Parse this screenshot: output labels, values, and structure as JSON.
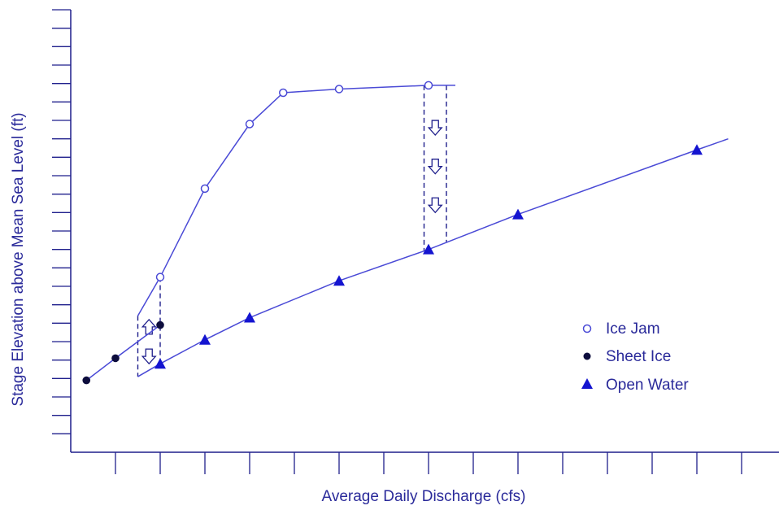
{
  "chart_data": {
    "type": "scatter",
    "title": "",
    "xlabel": "Average Daily Discharge (cfs)",
    "ylabel": "Stage Elevation above Mean Sea Level (ft)",
    "xlim": [
      0,
      16
    ],
    "ylim": [
      0,
      24
    ],
    "x_major_ticks": 16,
    "y_major_ticks": 24,
    "tick_labels": "none",
    "grid": false,
    "legend_position": "bottom-right",
    "colors": {
      "axis": "#1f1f8c",
      "line": "#4a4ad6",
      "ice_jam_fill": "#ffffff",
      "sheet_ice_fill": "#0d0d3d",
      "open_water_fill": "#1414d0",
      "label": "#2a2a9a"
    },
    "series": [
      {
        "name": "Ice Jam",
        "marker": "open-circle",
        "connected": true,
        "x": [
          2.0,
          3.0,
          4.0,
          4.75,
          6.0,
          8.0
        ],
        "y": [
          9.5,
          14.3,
          17.8,
          19.5,
          19.7,
          19.9
        ],
        "extension": {
          "from": [
            2.0,
            9.5
          ],
          "to": [
            1.5,
            7.4
          ],
          "end_x": 8.6
        }
      },
      {
        "name": "Sheet Ice",
        "marker": "filled-circle",
        "connected": true,
        "x": [
          0.35,
          1.0,
          2.0
        ],
        "y": [
          3.9,
          5.1,
          6.9
        ]
      },
      {
        "name": "Open Water",
        "marker": "filled-triangle",
        "connected": true,
        "x": [
          2.0,
          3.0,
          4.0,
          6.0,
          8.0,
          10.0,
          14.0
        ],
        "y": [
          4.8,
          6.1,
          7.3,
          9.3,
          11.0,
          12.9,
          16.4
        ],
        "extension": {
          "start": [
            1.5,
            4.1
          ],
          "end": [
            14.7,
            17.0
          ]
        }
      }
    ],
    "annotations": [
      {
        "type": "dashed-box",
        "x_left": 1.5,
        "x_right": 2.0,
        "meaning": "transition between sheet ice and ice jam stage"
      },
      {
        "type": "dashed-box",
        "x_left": 7.9,
        "x_right": 8.4,
        "meaning": "drop from ice jam to open water stage"
      },
      {
        "type": "arrow",
        "direction": "up",
        "x": 1.75,
        "y": 6.8
      },
      {
        "type": "arrow",
        "direction": "down",
        "x": 1.75,
        "y": 5.2
      },
      {
        "type": "arrow",
        "direction": "down",
        "x": 8.15,
        "y": 17.6
      },
      {
        "type": "arrow",
        "direction": "down",
        "x": 8.15,
        "y": 15.5
      },
      {
        "type": "arrow",
        "direction": "down",
        "x": 8.15,
        "y": 13.4
      }
    ]
  }
}
